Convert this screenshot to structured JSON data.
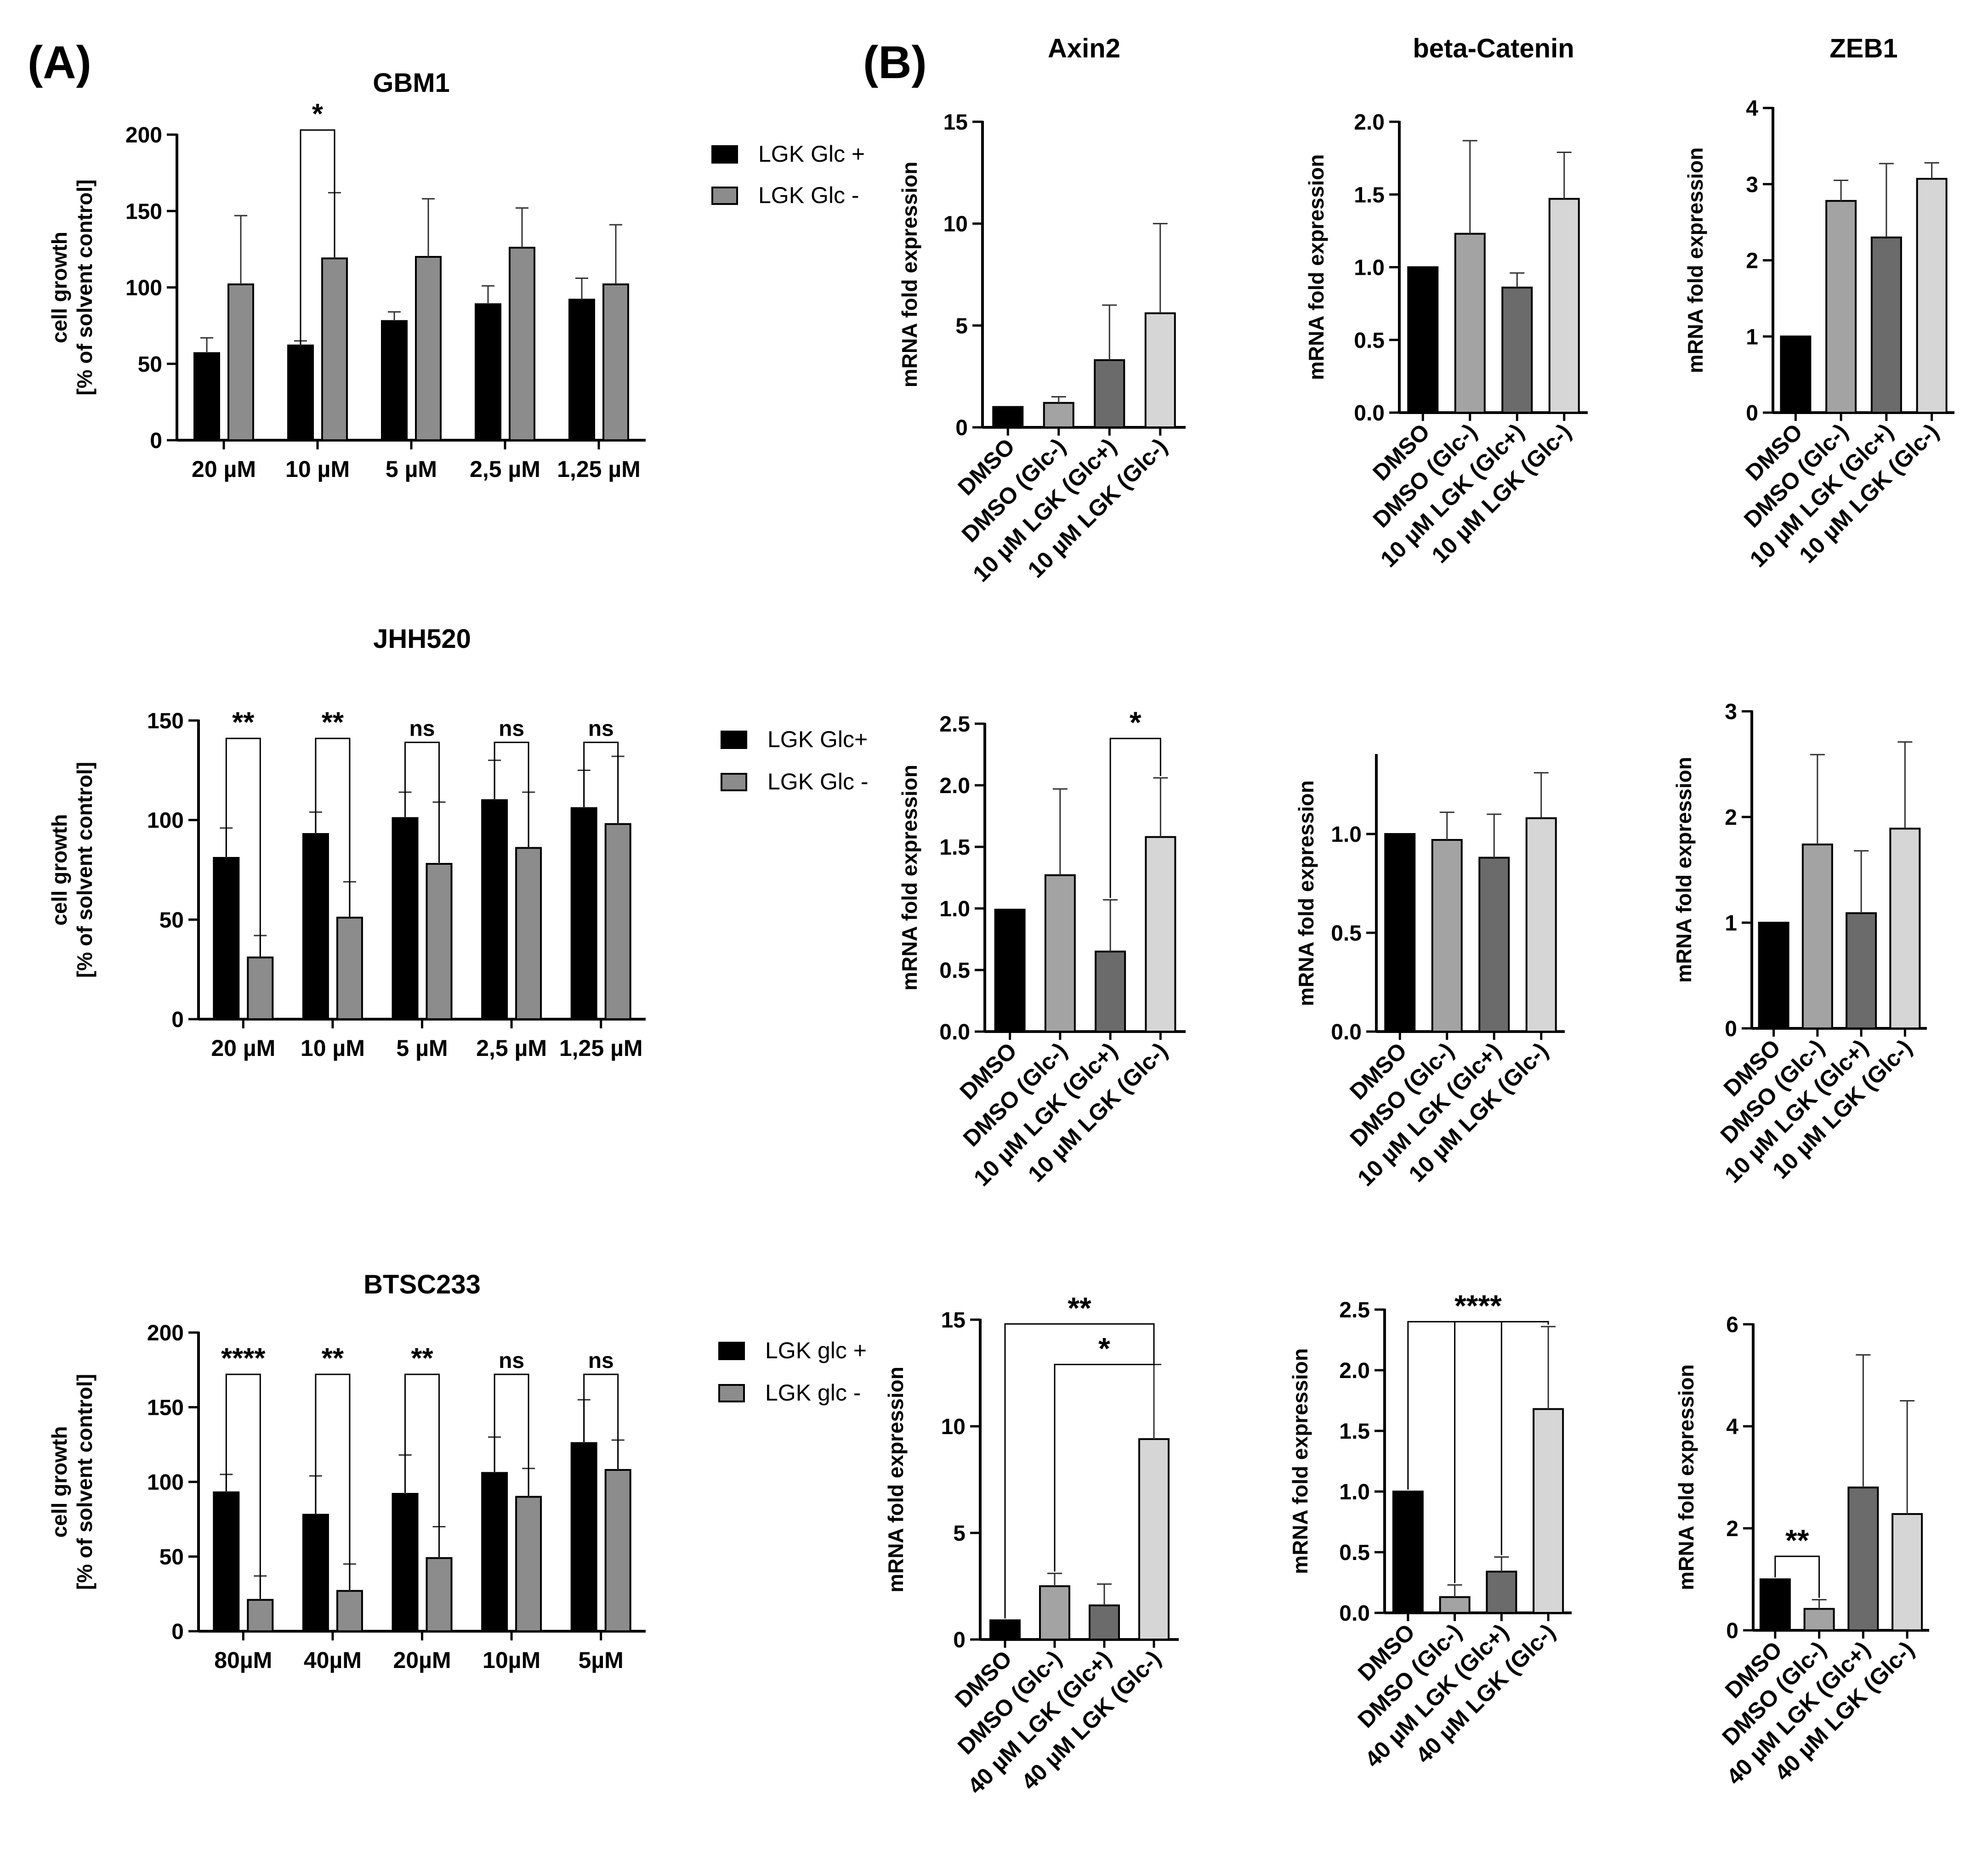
{
  "panel_labels": {
    "a": "(A)",
    "b": "(B)"
  },
  "colors": {
    "glc_plus": "#000000",
    "glc_minus": "#8c8c8c",
    "dmso": "#000000",
    "dmso_glc_minus": "#a3a3a3",
    "lgk_glc_plus": "#6b6b6b",
    "lgk_glc_minus": "#d6d6d6",
    "axis": "#000000"
  },
  "chart_data": [
    {
      "id": "gbm1-growth",
      "type": "bar",
      "title": "GBM1",
      "ylabel_lines": [
        "cell growth",
        "[% of solvent control]"
      ],
      "categories": [
        "20 µM",
        "10 µM",
        "5 µM",
        "2,5 µM",
        "1,25 µM"
      ],
      "series": [
        {
          "name": "LGK Glc +",
          "color_key": "glc_plus",
          "values": [
            57,
            62,
            78,
            89,
            92
          ],
          "errors": [
            10,
            3,
            6,
            12,
            14
          ]
        },
        {
          "name": "LGK Glc -",
          "color_key": "glc_minus",
          "values": [
            102,
            119,
            120,
            126,
            102
          ],
          "errors": [
            45,
            43,
            38,
            26,
            39
          ]
        }
      ],
      "ylim": [
        0,
        200
      ],
      "yticks": [
        0,
        50,
        100,
        150,
        200
      ],
      "ytick_labels": [
        "0",
        "50",
        "100",
        "150",
        "200"
      ],
      "legend": [
        "LGK Glc +",
        "LGK Glc -"
      ],
      "significance": [
        {
          "category_index": 1,
          "label": "*",
          "y": 203
        }
      ]
    },
    {
      "id": "jhh520-growth",
      "type": "bar",
      "title": "JHH520",
      "ylabel_lines": [
        "cell growth",
        "[% of solvent control]"
      ],
      "categories": [
        "20 µM",
        "10 µM",
        "5 µM",
        "2,5 µM",
        "1,25 µM"
      ],
      "series": [
        {
          "name": "LGK Glc+",
          "color_key": "glc_plus",
          "values": [
            81,
            93,
            101,
            110,
            106
          ],
          "errors": [
            15,
            11,
            13,
            20,
            19
          ]
        },
        {
          "name": "LGK Glc -",
          "color_key": "glc_minus",
          "values": [
            31,
            51,
            78,
            86,
            98
          ],
          "errors": [
            11,
            18,
            31,
            28,
            34
          ]
        }
      ],
      "ylim": [
        0,
        150
      ],
      "yticks": [
        0,
        50,
        100,
        150
      ],
      "ytick_labels": [
        "0",
        "50",
        "100",
        "150"
      ],
      "legend": [
        "LGK Glc+",
        "LGK Glc -"
      ],
      "significance": [
        {
          "category_index": 0,
          "label": "**",
          "y": 141
        },
        {
          "category_index": 1,
          "label": "**",
          "y": 141
        },
        {
          "category_index": 2,
          "label": "ns",
          "y": 139
        },
        {
          "category_index": 3,
          "label": "ns",
          "y": 139
        },
        {
          "category_index": 4,
          "label": "ns",
          "y": 139
        }
      ]
    },
    {
      "id": "btsc233-growth",
      "type": "bar",
      "title": "BTSC233",
      "ylabel_lines": [
        "cell growth",
        "[% of solvent control]"
      ],
      "categories": [
        "80µM",
        "40µM",
        "20µM",
        "10µM",
        "5µM"
      ],
      "series": [
        {
          "name": "LGK glc +",
          "color_key": "glc_plus",
          "values": [
            93,
            78,
            92,
            106,
            126
          ],
          "errors": [
            12,
            26,
            26,
            24,
            29
          ]
        },
        {
          "name": "LGK glc -",
          "color_key": "glc_minus",
          "values": [
            21,
            27,
            49,
            90,
            108
          ],
          "errors": [
            16,
            18,
            21,
            19,
            20
          ]
        }
      ],
      "ylim": [
        0,
        200
      ],
      "yticks": [
        0,
        50,
        100,
        150,
        200
      ],
      "ytick_labels": [
        "0",
        "50",
        "100",
        "150",
        "200"
      ],
      "legend": [
        "LGK glc +",
        "LGK glc -"
      ],
      "significance": [
        {
          "category_index": 0,
          "label": "****",
          "y": 172
        },
        {
          "category_index": 1,
          "label": "**",
          "y": 172
        },
        {
          "category_index": 2,
          "label": "**",
          "y": 172
        },
        {
          "category_index": 3,
          "label": "ns",
          "y": 172
        },
        {
          "category_index": 4,
          "label": "ns",
          "y": 172
        }
      ]
    },
    {
      "id": "axin2-gbm1",
      "type": "bar",
      "title": "Axin2",
      "ylabel": "mRNA fold expression",
      "categories": [
        "DMSO",
        "DMSO (Glc-)",
        "10 µM LGK (Glc+)",
        "10 µM LGK (Glc-)"
      ],
      "color_keys": [
        "dmso",
        "dmso_glc_minus",
        "lgk_glc_plus",
        "lgk_glc_minus"
      ],
      "values": [
        1.0,
        1.2,
        3.3,
        5.6
      ],
      "errors": [
        0,
        0.3,
        2.7,
        4.4
      ],
      "ylim": [
        0,
        15
      ],
      "yticks": [
        0,
        5,
        10,
        15
      ],
      "ytick_labels": [
        "0",
        "5",
        "10",
        "15"
      ],
      "brackets": []
    },
    {
      "id": "beta-catenin-gbm1",
      "type": "bar",
      "title": "beta-Catenin",
      "ylabel": "mRNA fold expression",
      "categories": [
        "DMSO",
        "DMSO (Glc-)",
        "10 µM LGK (Glc+)",
        "10 µM LGK (Glc-)"
      ],
      "color_keys": [
        "dmso",
        "dmso_glc_minus",
        "lgk_glc_plus",
        "lgk_glc_minus"
      ],
      "values": [
        1.0,
        1.23,
        0.86,
        1.47
      ],
      "errors": [
        0,
        0.64,
        0.1,
        0.32
      ],
      "ylim": [
        0,
        2
      ],
      "yticks": [
        0,
        0.5,
        1,
        1.5,
        2
      ],
      "ytick_labels": [
        "0.0",
        "0.5",
        "1.0",
        "1.5",
        "2.0"
      ],
      "brackets": []
    },
    {
      "id": "zeb1-gbm1",
      "type": "bar",
      "title": "ZEB1",
      "ylabel": "mRNA fold expression",
      "categories": [
        "DMSO",
        "DMSO (Glc-)",
        "10 µM LGK (Glc+)",
        "10 µM LGK (Glc-)"
      ],
      "color_keys": [
        "dmso",
        "dmso_glc_minus",
        "lgk_glc_plus",
        "lgk_glc_minus"
      ],
      "values": [
        1.0,
        2.78,
        2.3,
        3.07
      ],
      "errors": [
        0,
        0.27,
        0.97,
        0.21
      ],
      "ylim": [
        0,
        4
      ],
      "yticks": [
        0,
        1,
        2,
        3,
        4
      ],
      "ytick_labels": [
        "0",
        "1",
        "2",
        "3",
        "4"
      ],
      "brackets": []
    },
    {
      "id": "axin2-jhh520",
      "type": "bar",
      "title": "",
      "ylabel": "mRNA fold expression",
      "categories": [
        "DMSO",
        "DMSO (Glc-)",
        "10 µM LGK (Glc+)",
        "10 µM LGK (Glc-)"
      ],
      "color_keys": [
        "dmso",
        "dmso_glc_minus",
        "lgk_glc_plus",
        "lgk_glc_minus"
      ],
      "values": [
        0.99,
        1.27,
        0.65,
        1.58
      ],
      "errors": [
        0,
        0.7,
        0.42,
        0.48
      ],
      "ylim": [
        0,
        2.5
      ],
      "yticks": [
        0,
        0.5,
        1,
        1.5,
        2,
        2.5
      ],
      "ytick_labels": [
        "0.0",
        "0.5",
        "1.0",
        "1.5",
        "2.0",
        "2.5"
      ],
      "brackets": [
        {
          "from": 2,
          "to": 3,
          "y": 2.38,
          "label": "*"
        }
      ]
    },
    {
      "id": "beta-catenin-jhh520",
      "type": "bar",
      "title": "",
      "ylabel": "mRNA fold expression",
      "categories": [
        "DMSO",
        "DMSO (Glc-)",
        "10 µM LGK (Glc+)",
        "10 µM LGK (Glc-)"
      ],
      "color_keys": [
        "dmso",
        "dmso_glc_minus",
        "lgk_glc_plus",
        "lgk_glc_minus"
      ],
      "values": [
        1.0,
        0.97,
        0.88,
        1.08
      ],
      "errors": [
        0,
        0.14,
        0.22,
        0.23
      ],
      "ylim": [
        0,
        1.4
      ],
      "yticks": [
        0,
        0.5,
        1
      ],
      "ytick_labels": [
        "0.0",
        "0.5",
        "1.0"
      ],
      "brackets": []
    },
    {
      "id": "zeb1-jhh520",
      "type": "bar",
      "title": "",
      "ylabel": "mRNA fold expression",
      "categories": [
        "DMSO",
        "DMSO (Glc-)",
        "10 µM LGK (Glc+)",
        "10 µM LGK (Glc-)"
      ],
      "color_keys": [
        "dmso",
        "dmso_glc_minus",
        "lgk_glc_plus",
        "lgk_glc_minus"
      ],
      "values": [
        1.0,
        1.74,
        1.09,
        1.89
      ],
      "errors": [
        0,
        0.85,
        0.59,
        0.82
      ],
      "ylim": [
        0,
        3
      ],
      "yticks": [
        0,
        1,
        2,
        3
      ],
      "ytick_labels": [
        "0",
        "1",
        "2",
        "3"
      ],
      "brackets": []
    },
    {
      "id": "axin2-btsc233",
      "type": "bar",
      "title": "",
      "ylabel": "mRNA fold expression",
      "categories": [
        "DMSO",
        "DMSO (Glc-)",
        "40 µM LGK (Glc+)",
        "40 µM LGK (Glc-)"
      ],
      "color_keys": [
        "dmso",
        "dmso_glc_minus",
        "lgk_glc_plus",
        "lgk_glc_minus"
      ],
      "values": [
        0.9,
        2.5,
        1.6,
        9.4
      ],
      "errors": [
        0,
        0.6,
        1.0,
        3.5
      ],
      "ylim": [
        0,
        15
      ],
      "yticks": [
        0,
        5,
        10,
        15
      ],
      "ytick_labels": [
        "0",
        "5",
        "10",
        "15"
      ],
      "brackets": [
        {
          "from": 0,
          "to": 3,
          "y": 14.8,
          "label": "**"
        },
        {
          "from": 1,
          "to": 3,
          "y": 12.9,
          "label": "*"
        }
      ]
    },
    {
      "id": "beta-catenin-btsc233",
      "type": "bar",
      "title": "",
      "ylabel": "mRNA fold expression",
      "categories": [
        "DMSO",
        "DMSO (Glc-)",
        "40 µM LGK (Glc+)",
        "40 µM LGK (Glc-)"
      ],
      "color_keys": [
        "dmso",
        "dmso_glc_minus",
        "lgk_glc_plus",
        "lgk_glc_minus"
      ],
      "values": [
        1.0,
        0.13,
        0.34,
        1.68
      ],
      "errors": [
        0,
        0.1,
        0.12,
        0.68
      ],
      "ylim": [
        0,
        2.5
      ],
      "yticks": [
        0,
        0.5,
        1,
        1.5,
        2,
        2.5
      ],
      "ytick_labels": [
        "0.0",
        "0.5",
        "1.0",
        "1.5",
        "2.0",
        "2.5"
      ],
      "brackets": [
        {
          "from": 0,
          "to": 3,
          "y": 2.4,
          "label": "****",
          "multi_legs": true
        }
      ]
    },
    {
      "id": "zeb1-btsc233",
      "type": "bar",
      "title": "",
      "ylabel": "mRNA fold expression",
      "categories": [
        "DMSO",
        "DMSO (Glc-)",
        "40 µM LGK (Glc+)",
        "40 µM LGK (Glc-)"
      ],
      "color_keys": [
        "dmso",
        "dmso_glc_minus",
        "lgk_glc_plus",
        "lgk_glc_minus"
      ],
      "values": [
        1.0,
        0.42,
        2.8,
        2.28
      ],
      "errors": [
        0,
        0.18,
        2.6,
        2.22
      ],
      "ylim": [
        0,
        6
      ],
      "yticks": [
        0,
        2,
        4,
        6
      ],
      "ytick_labels": [
        "0",
        "2",
        "4",
        "6"
      ],
      "brackets": [
        {
          "from": 0,
          "to": 1,
          "y": 1.45,
          "label": "**"
        }
      ]
    }
  ]
}
